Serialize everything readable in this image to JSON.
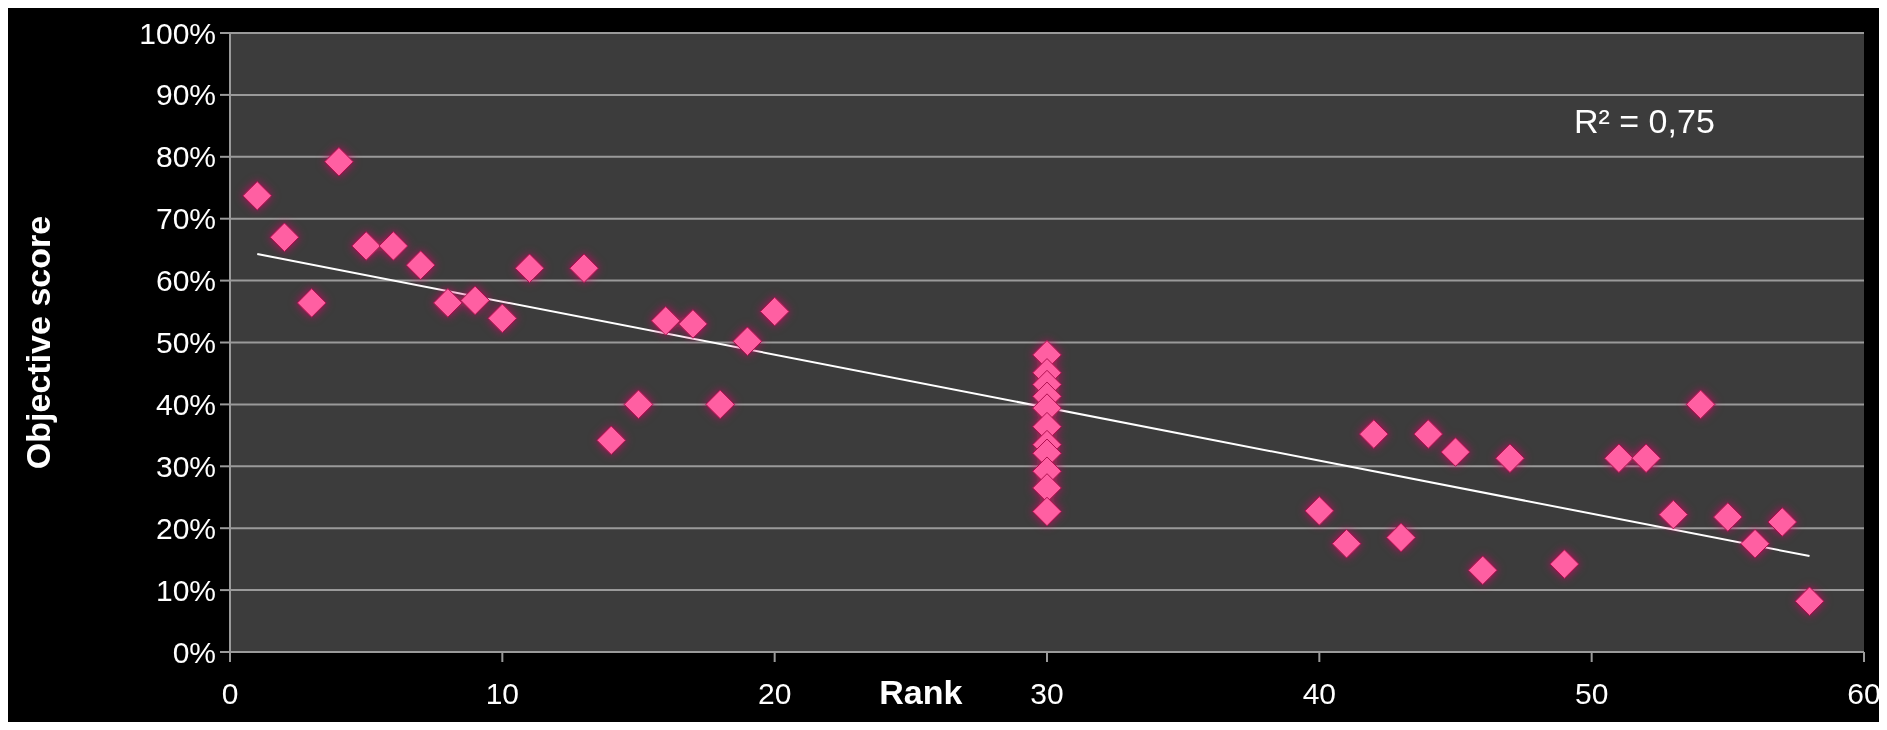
{
  "chart_data": {
    "type": "scatter",
    "xlabel": "Rank",
    "ylabel": "Objective score",
    "xlim": [
      0,
      60
    ],
    "xticks": [
      0,
      10,
      20,
      30,
      40,
      50,
      60
    ],
    "ylim": [
      0,
      100
    ],
    "yticks": [
      {
        "value": 0,
        "label": "0%"
      },
      {
        "value": 10,
        "label": "10%"
      },
      {
        "value": 20,
        "label": "20%"
      },
      {
        "value": 30,
        "label": "30%"
      },
      {
        "value": 40,
        "label": "40%"
      },
      {
        "value": 50,
        "label": "50%"
      },
      {
        "value": 60,
        "label": "60%"
      },
      {
        "value": 70,
        "label": "70%"
      },
      {
        "value": 80,
        "label": "80%"
      },
      {
        "value": 90,
        "label": "90%"
      },
      {
        "value": 100,
        "label": "100%"
      }
    ],
    "grid": "y",
    "annotations": [
      "R² = 0,75"
    ],
    "series": [
      {
        "marker": "diamond",
        "color": "#ff5fa2",
        "x": [
          1,
          2,
          3,
          4,
          5,
          6,
          7,
          8,
          9,
          10,
          11,
          13,
          14,
          15,
          16,
          17,
          18,
          19,
          20,
          30,
          30,
          30,
          30,
          30,
          30,
          30,
          30,
          30,
          30,
          30,
          40,
          41,
          42,
          43,
          44,
          45,
          46,
          47,
          49,
          51,
          52,
          53,
          54,
          55,
          56,
          57,
          58
        ],
        "values": [
          73.7,
          67,
          56.4,
          79.2,
          65.6,
          65.6,
          62.5,
          56.4,
          56.8,
          53.9,
          62,
          62,
          34.2,
          40,
          53.5,
          53,
          40,
          50.2,
          55,
          48,
          45.1,
          43.2,
          41.3,
          39.4,
          36.4,
          33.5,
          32.1,
          29.2,
          26.5,
          22.7,
          22.8,
          17.5,
          35.2,
          18.5,
          35.2,
          32.3,
          13.2,
          31.3,
          14.2,
          31.3,
          31.3,
          22.2,
          40,
          21.8,
          17.5,
          21,
          8.2
        ]
      },
      {
        "type": "line",
        "color": "#ffffff",
        "x": [
          1,
          58
        ],
        "values": [
          64.3,
          15.5
        ]
      }
    ]
  }
}
